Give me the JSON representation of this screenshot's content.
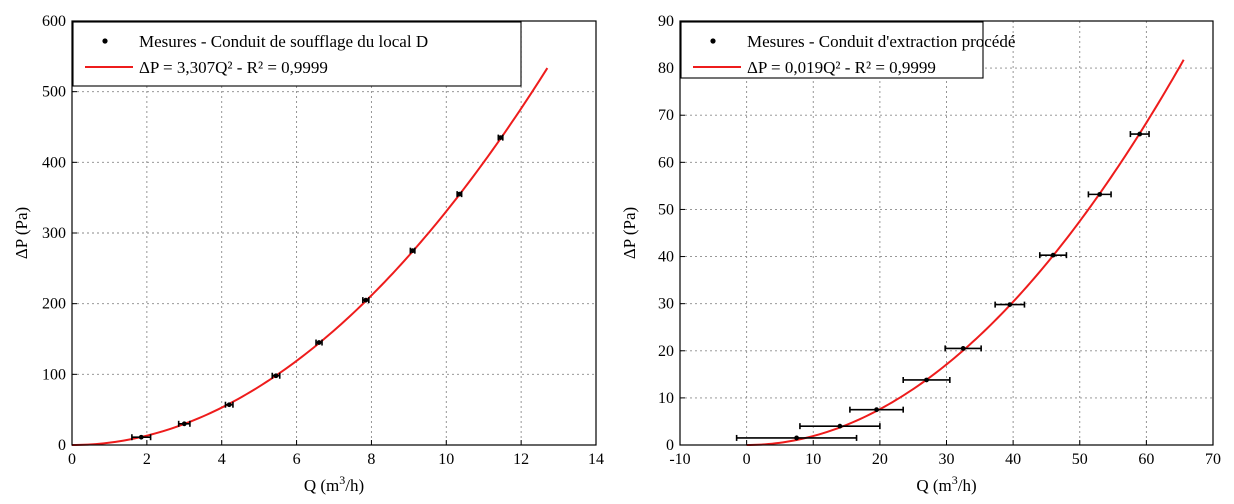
{
  "chart_data": [
    {
      "type": "scatter",
      "xlabel_base": "Q (m",
      "xlabel_sup": "3",
      "xlabel_end": "/h)",
      "ylabel": "ΔP (Pa)",
      "xlim": [
        0,
        14
      ],
      "ylim": [
        0,
        600
      ],
      "xticks": [
        0,
        2,
        4,
        6,
        8,
        10,
        12,
        14
      ],
      "yticks": [
        0,
        100,
        200,
        300,
        400,
        500,
        600
      ],
      "grid": true,
      "legend_position": "top-left",
      "series": [
        {
          "name": "Mesures - Conduit de soufflage du local D",
          "kind": "points",
          "color": "#000000",
          "x": [
            1.85,
            3.0,
            4.2,
            5.45,
            6.6,
            7.85,
            9.1,
            10.35,
            11.45
          ],
          "y": [
            11,
            30,
            57,
            98,
            145,
            205,
            275,
            355,
            435
          ],
          "x_err": [
            0.25,
            0.15,
            0.1,
            0.1,
            0.08,
            0.08,
            0.06,
            0.06,
            0.06
          ]
        },
        {
          "name": "ΔP = 3,307Q² - R² = 0,9999",
          "kind": "fit",
          "color": "#ee1c1c",
          "coefficient": 3.307,
          "x_range": [
            0,
            12.7
          ]
        }
      ]
    },
    {
      "type": "scatter",
      "xlabel_base": "Q (m",
      "xlabel_sup": "3",
      "xlabel_end": "/h)",
      "ylabel": "ΔP (Pa)",
      "xlim": [
        -10,
        70
      ],
      "ylim": [
        0,
        90
      ],
      "xticks": [
        -10,
        0,
        10,
        20,
        30,
        40,
        50,
        60,
        70
      ],
      "yticks": [
        0,
        10,
        20,
        30,
        40,
        50,
        60,
        70,
        80,
        90
      ],
      "grid": true,
      "legend_position": "top-left",
      "series": [
        {
          "name": "Mesures - Conduit d'extraction procédé",
          "kind": "points",
          "color": "#000000",
          "x": [
            7.5,
            14,
            19.5,
            27,
            32.5,
            39.5,
            46,
            53,
            59
          ],
          "y": [
            1.5,
            4,
            7.5,
            13.8,
            20.5,
            29.8,
            40.3,
            53.2,
            66
          ],
          "x_err": [
            9,
            6,
            4,
            3.5,
            2.7,
            2.2,
            2,
            1.7,
            1.4
          ]
        },
        {
          "name": "ΔP = 0,019Q² - R² = 0,9999",
          "kind": "fit",
          "color": "#ee1c1c",
          "coefficient": 0.019,
          "x_range": [
            0,
            65.6
          ]
        }
      ]
    }
  ]
}
